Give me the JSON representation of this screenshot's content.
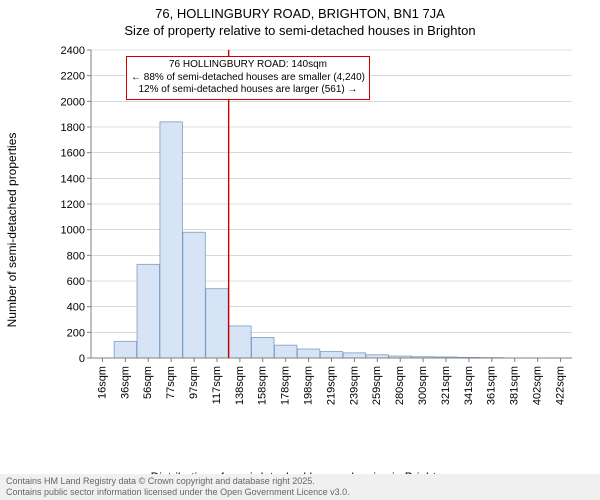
{
  "title": "76, HOLLINGBURY ROAD, BRIGHTON, BN1 7JA",
  "subtitle": "Size of property relative to semi-detached houses in Brighton",
  "ylabel": "Number of semi-detached properties",
  "xlabel": "Distribution of semi-detached houses by size in Brighton",
  "footer_line1": "Contains HM Land Registry data © Crown copyright and database right 2025.",
  "footer_line2": "Contains public sector information licensed under the Open Government Licence v3.0.",
  "chart": {
    "type": "histogram",
    "background_color": "#ffffff",
    "grid_color": "#c0c0c0",
    "axis_color": "#808080",
    "bar_fill": "#d6e4f5",
    "bar_stroke": "#7a9cc6",
    "marker_line_color": "#cc0000",
    "callout_border": "#cc0000",
    "ymin": 0,
    "ymax": 2400,
    "ytick_step": 200,
    "x_categories": [
      "16sqm",
      "36sqm",
      "56sqm",
      "77sqm",
      "97sqm",
      "117sqm",
      "138sqm",
      "158sqm",
      "178sqm",
      "198sqm",
      "219sqm",
      "239sqm",
      "259sqm",
      "280sqm",
      "300sqm",
      "321sqm",
      "341sqm",
      "361sqm",
      "381sqm",
      "402sqm",
      "422sqm"
    ],
    "values": [
      0,
      130,
      730,
      1840,
      980,
      540,
      250,
      160,
      100,
      70,
      50,
      40,
      25,
      15,
      10,
      8,
      5,
      3,
      2,
      1,
      1
    ],
    "marker_after_index": 6,
    "callout": {
      "line1": "76 HOLLINGBURY ROAD: 140sqm",
      "line2": "← 88% of semi-detached houses are smaller (4,240)",
      "line3": "12% of semi-detached houses are larger (561) →"
    }
  }
}
